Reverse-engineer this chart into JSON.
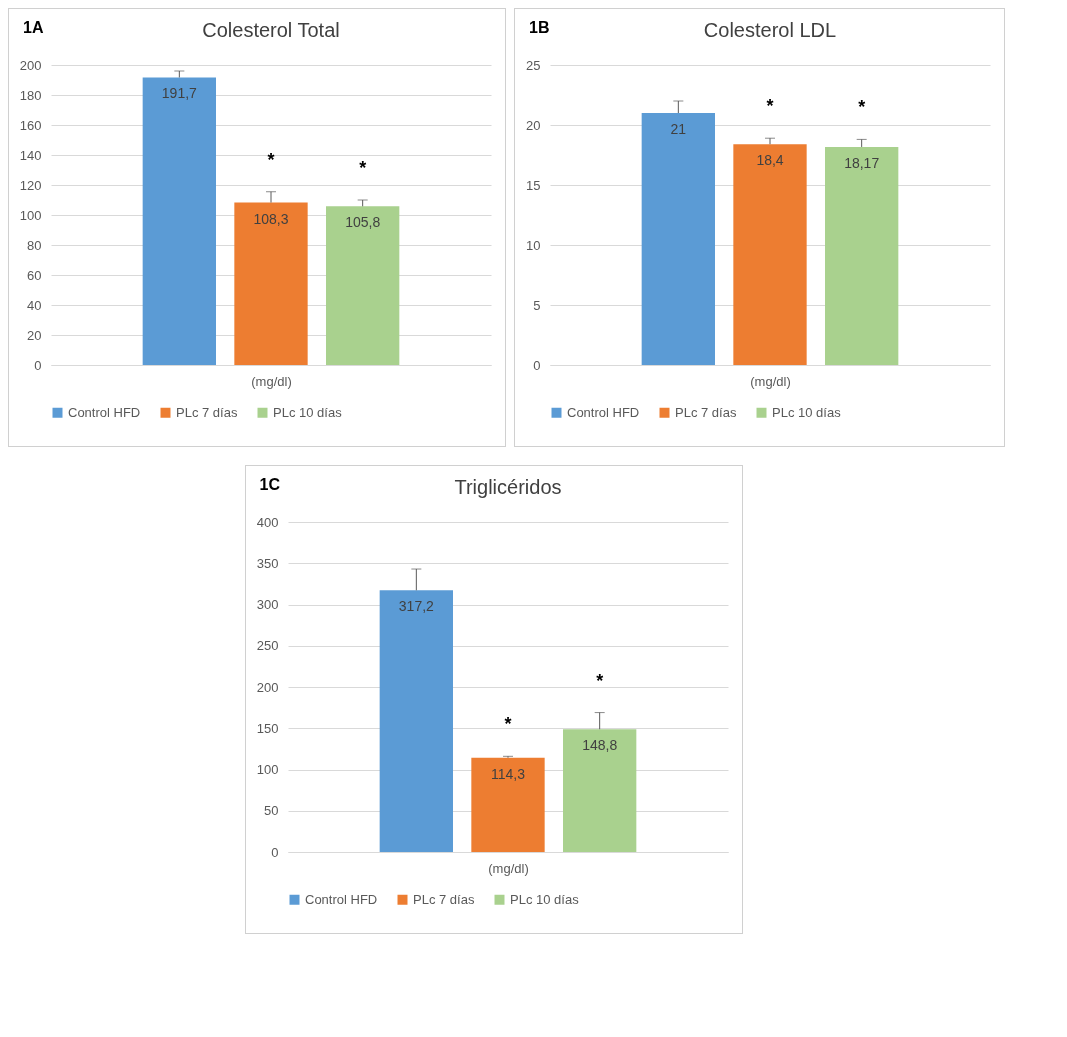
{
  "chart_data": [
    {
      "type": "bar",
      "title": "Colesterol Total",
      "xlabel": "(mg/dl)",
      "categories": [
        null
      ],
      "ylim": [
        0,
        200
      ],
      "yticks": [
        0,
        20,
        40,
        60,
        80,
        100,
        120,
        140,
        160,
        180,
        200
      ],
      "grid": "y",
      "legend": "bottom",
      "tick_labels": "y",
      "series": [
        {
          "name": "Control HFD",
          "color": "#5b9bd5",
          "values": [
            191.7
          ],
          "errors": [
            [
              191.7,
              196
            ]
          ],
          "value_labels": [
            "191,7"
          ]
        },
        {
          "name": "PLc 7 días",
          "color": "#ed7d31",
          "values": [
            108.3
          ],
          "errors": [
            [
              108.3,
              115.5
            ]
          ],
          "value_labels": [
            "108,3"
          ]
        },
        {
          "name": "PLc 10 días",
          "color": "#a9d18e",
          "values": [
            105.8
          ],
          "errors": [
            [
              105.8,
              110
            ]
          ],
          "value_labels": [
            "105,8"
          ]
        }
      ],
      "annotations": [
        "1A",
        "*",
        "*"
      ]
    },
    {
      "type": "bar",
      "title": "Colesterol LDL",
      "xlabel": "(mg/dl)",
      "categories": [
        null
      ],
      "ylim": [
        0,
        25
      ],
      "yticks": [
        0,
        5,
        10,
        15,
        20,
        25
      ],
      "grid": "y",
      "legend": "bottom",
      "tick_labels": "y",
      "series": [
        {
          "name": "Control HFD",
          "color": "#5b9bd5",
          "values": [
            21
          ],
          "errors": [
            [
              21,
              22
            ]
          ],
          "value_labels": [
            "21"
          ]
        },
        {
          "name": "PLc 7 días",
          "color": "#ed7d31",
          "values": [
            18.4
          ],
          "errors": [
            [
              18.4,
              18.9
            ]
          ],
          "value_labels": [
            "18,4"
          ]
        },
        {
          "name": "PLc 10 días",
          "color": "#a9d18e",
          "values": [
            18.17
          ],
          "errors": [
            [
              18.17,
              18.8
            ]
          ],
          "value_labels": [
            "18,17"
          ]
        }
      ],
      "annotations": [
        "1B",
        "*",
        "*"
      ]
    },
    {
      "type": "bar",
      "title": "Triglicéridos",
      "xlabel": "(mg/dl)",
      "categories": [
        null
      ],
      "ylim": [
        0,
        400
      ],
      "yticks": [
        0,
        50,
        100,
        150,
        200,
        250,
        300,
        350,
        400
      ],
      "grid": "y",
      "legend": "bottom",
      "tick_labels": "y",
      "series": [
        {
          "name": "Control HFD",
          "color": "#5b9bd5",
          "values": [
            317.2
          ],
          "errors": [
            [
              317.2,
              343
            ]
          ],
          "value_labels": [
            "317,2"
          ]
        },
        {
          "name": "PLc 7 días",
          "color": "#ed7d31",
          "values": [
            114.3
          ],
          "errors": [
            [
              114.3,
              116
            ]
          ],
          "value_labels": [
            "114,3"
          ]
        },
        {
          "name": "PLc 10 días",
          "color": "#a9d18e",
          "values": [
            148.8
          ],
          "errors": [
            [
              148.8,
              169
            ]
          ],
          "value_labels": [
            "148,8"
          ]
        }
      ],
      "annotations": [
        "1C",
        "*",
        "*"
      ]
    }
  ]
}
